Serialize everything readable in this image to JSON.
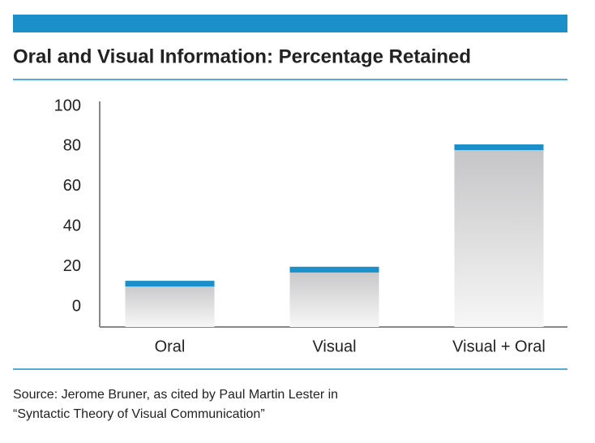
{
  "chart_data": {
    "type": "bar",
    "title": "Oral and Visual Information: Percentage Retained",
    "categories": [
      "Oral",
      "Visual",
      "Visual + Oral"
    ],
    "values": [
      13,
      20,
      81
    ],
    "color": "#1a8fc9",
    "ylim": [
      -10,
      100
    ],
    "yticks": [
      0,
      20,
      40,
      60,
      80,
      100
    ],
    "grid": false,
    "source": [
      "Source: Jerome Bruner, as cited by Paul Martin Lester in",
      "“Syntactic Theory of Visual Communication”"
    ]
  }
}
